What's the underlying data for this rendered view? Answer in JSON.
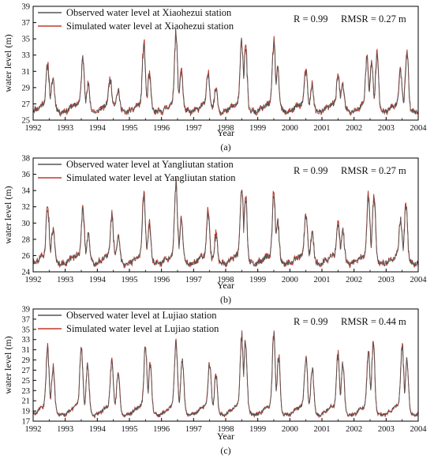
{
  "chart_data": [
    {
      "type": "line",
      "caption": "(a)",
      "xlabel": "Year",
      "ylabel": "water level (m)",
      "xlim": [
        1992,
        2004
      ],
      "ylim": [
        25,
        39
      ],
      "yticks": [
        "25",
        "27",
        "29",
        "31",
        "33",
        "35",
        "37",
        "39"
      ],
      "xticks": [
        "1992",
        "1993",
        "1994",
        "1995",
        "1996",
        "1997",
        "1998",
        "1999",
        "2000",
        "2001",
        "2002",
        "2003",
        "2004"
      ],
      "stats": {
        "r": "R = 0.99",
        "rmsr": "RMSR = 0.27 m"
      },
      "legend_position": "top-left",
      "series": [
        {
          "name": "Observed water level at Xiaohezui station",
          "color": "#555555"
        },
        {
          "name": "Simulated water level at Xiaohezui station",
          "color": "#c0392b"
        }
      ],
      "base": 27.0,
      "floor": 26.0,
      "events": [
        [
          1992.45,
          31.8
        ],
        [
          1992.62,
          30.5
        ],
        [
          1993.55,
          32.8
        ],
        [
          1993.72,
          30.0
        ],
        [
          1994.4,
          30.0
        ],
        [
          1994.65,
          29.2
        ],
        [
          1995.45,
          34.2
        ],
        [
          1995.62,
          30.8
        ],
        [
          1996.45,
          35.5
        ],
        [
          1996.62,
          31.5
        ],
        [
          1997.45,
          30.5
        ],
        [
          1997.7,
          29.5
        ],
        [
          1998.5,
          35.0
        ],
        [
          1998.62,
          34.5
        ],
        [
          1999.5,
          34.5
        ],
        [
          1999.62,
          31.5
        ],
        [
          2000.5,
          31.0
        ],
        [
          2000.7,
          29.8
        ],
        [
          2001.5,
          30.5
        ],
        [
          2001.65,
          30.0
        ],
        [
          2002.4,
          32.5
        ],
        [
          2002.55,
          32.0
        ],
        [
          2002.72,
          34.2
        ],
        [
          2003.45,
          31.0
        ],
        [
          2003.65,
          34.0
        ]
      ]
    },
    {
      "type": "line",
      "caption": "(b)",
      "xlabel": "Year",
      "ylabel": "water level (m)",
      "xlim": [
        1992,
        2004
      ],
      "ylim": [
        24,
        38
      ],
      "yticks": [
        "24",
        "26",
        "28",
        "30",
        "32",
        "34",
        "36",
        "38"
      ],
      "xticks": [
        "1992",
        "1993",
        "1994",
        "1995",
        "1996",
        "1997",
        "1998",
        "1999",
        "2000",
        "2001",
        "2002",
        "2003",
        "2004"
      ],
      "stats": {
        "r": "R = 0.99",
        "rmsr": "RMSR = 0.27 m"
      },
      "legend_position": "top-left",
      "series": [
        {
          "name": "Observed water level at Yangliutan station",
          "color": "#555555"
        },
        {
          "name": "Simulated water level at Yangliutan station",
          "color": "#c0392b"
        }
      ],
      "base": 26.0,
      "floor": 25.0,
      "events": [
        [
          1992.45,
          32.0
        ],
        [
          1992.62,
          29.5
        ],
        [
          1993.55,
          31.8
        ],
        [
          1993.72,
          29.5
        ],
        [
          1994.45,
          30.8
        ],
        [
          1994.65,
          29.0
        ],
        [
          1995.45,
          33.2
        ],
        [
          1995.62,
          30.0
        ],
        [
          1996.45,
          34.8
        ],
        [
          1996.62,
          31.0
        ],
        [
          1997.45,
          31.2
        ],
        [
          1997.7,
          29.0
        ],
        [
          1998.5,
          34.2
        ],
        [
          1998.62,
          33.5
        ],
        [
          1999.5,
          33.5
        ],
        [
          1999.62,
          30.5
        ],
        [
          2000.5,
          31.0
        ],
        [
          2000.7,
          29.5
        ],
        [
          2001.5,
          30.2
        ],
        [
          2001.65,
          29.5
        ],
        [
          2002.45,
          33.0
        ],
        [
          2002.62,
          33.8
        ],
        [
          2003.45,
          30.5
        ],
        [
          2003.62,
          32.3
        ]
      ]
    },
    {
      "type": "line",
      "caption": "(c)",
      "xlabel": "Year",
      "ylabel": "water level (m)",
      "xlim": [
        1992,
        2004
      ],
      "ylim": [
        17,
        39
      ],
      "yticks": [
        "17",
        "19",
        "21",
        "23",
        "25",
        "27",
        "29",
        "31",
        "33",
        "35",
        "37",
        "39"
      ],
      "xticks": [
        "1992",
        "1993",
        "1994",
        "1995",
        "1996",
        "1997",
        "1998",
        "1999",
        "2000",
        "2001",
        "2002",
        "2003",
        "2004"
      ],
      "stats": {
        "r": "R = 0.99",
        "rmsr": "RMSR = 0.44 m"
      },
      "legend_position": "top-left",
      "series": [
        {
          "name": "Observed water level at Lujiao station",
          "color": "#555555"
        },
        {
          "name": "Simulated water level at Lujiao station",
          "color": "#c0392b"
        }
      ],
      "base": 20.0,
      "floor": 18.2,
      "events": [
        [
          1992.45,
          31.0
        ],
        [
          1992.62,
          28.0
        ],
        [
          1993.5,
          31.5
        ],
        [
          1993.7,
          29.0
        ],
        [
          1994.45,
          28.5
        ],
        [
          1994.65,
          27.5
        ],
        [
          1995.5,
          32.0
        ],
        [
          1995.65,
          29.0
        ],
        [
          1996.45,
          33.2
        ],
        [
          1996.65,
          30.0
        ],
        [
          1997.5,
          28.5
        ],
        [
          1997.7,
          27.0
        ],
        [
          1998.5,
          33.8
        ],
        [
          1998.62,
          33.5
        ],
        [
          1999.5,
          33.6
        ],
        [
          1999.65,
          30.5
        ],
        [
          2000.5,
          29.8
        ],
        [
          2000.7,
          28.5
        ],
        [
          2001.5,
          30.0
        ],
        [
          2001.65,
          29.0
        ],
        [
          2002.45,
          30.5
        ],
        [
          2002.6,
          32.8
        ],
        [
          2003.5,
          31.8
        ],
        [
          2003.65,
          30.0
        ]
      ]
    }
  ]
}
